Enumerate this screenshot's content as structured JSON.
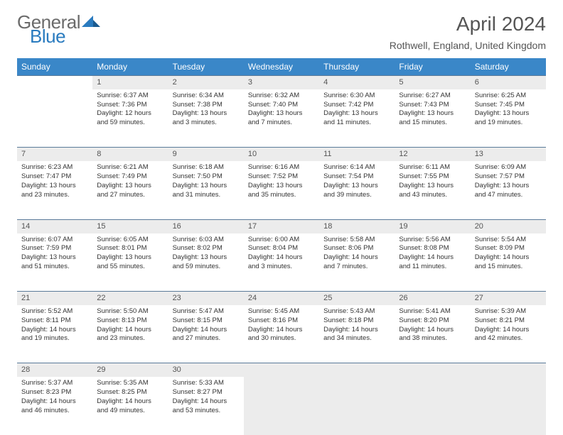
{
  "logo": {
    "text1": "General",
    "text2": "Blue",
    "tri_color": "#2a7bbf"
  },
  "title": "April 2024",
  "location": "Rothwell, England, United Kingdom",
  "header_bg": "#3a87c8",
  "daynum_bg": "#ececec",
  "border_color": "#5a7a99",
  "text_color": "#333333",
  "font_size_body": 9.5,
  "font_size_daynum": 11,
  "font_size_header": 12,
  "days": [
    "Sunday",
    "Monday",
    "Tuesday",
    "Wednesday",
    "Thursday",
    "Friday",
    "Saturday"
  ],
  "weeks": [
    {
      "nums": [
        "",
        "1",
        "2",
        "3",
        "4",
        "5",
        "6"
      ],
      "cells": [
        null,
        {
          "sr": "Sunrise: 6:37 AM",
          "ss": "Sunset: 7:36 PM",
          "d1": "Daylight: 12 hours",
          "d2": "and 59 minutes."
        },
        {
          "sr": "Sunrise: 6:34 AM",
          "ss": "Sunset: 7:38 PM",
          "d1": "Daylight: 13 hours",
          "d2": "and 3 minutes."
        },
        {
          "sr": "Sunrise: 6:32 AM",
          "ss": "Sunset: 7:40 PM",
          "d1": "Daylight: 13 hours",
          "d2": "and 7 minutes."
        },
        {
          "sr": "Sunrise: 6:30 AM",
          "ss": "Sunset: 7:42 PM",
          "d1": "Daylight: 13 hours",
          "d2": "and 11 minutes."
        },
        {
          "sr": "Sunrise: 6:27 AM",
          "ss": "Sunset: 7:43 PM",
          "d1": "Daylight: 13 hours",
          "d2": "and 15 minutes."
        },
        {
          "sr": "Sunrise: 6:25 AM",
          "ss": "Sunset: 7:45 PM",
          "d1": "Daylight: 13 hours",
          "d2": "and 19 minutes."
        }
      ]
    },
    {
      "nums": [
        "7",
        "8",
        "9",
        "10",
        "11",
        "12",
        "13"
      ],
      "cells": [
        {
          "sr": "Sunrise: 6:23 AM",
          "ss": "Sunset: 7:47 PM",
          "d1": "Daylight: 13 hours",
          "d2": "and 23 minutes."
        },
        {
          "sr": "Sunrise: 6:21 AM",
          "ss": "Sunset: 7:49 PM",
          "d1": "Daylight: 13 hours",
          "d2": "and 27 minutes."
        },
        {
          "sr": "Sunrise: 6:18 AM",
          "ss": "Sunset: 7:50 PM",
          "d1": "Daylight: 13 hours",
          "d2": "and 31 minutes."
        },
        {
          "sr": "Sunrise: 6:16 AM",
          "ss": "Sunset: 7:52 PM",
          "d1": "Daylight: 13 hours",
          "d2": "and 35 minutes."
        },
        {
          "sr": "Sunrise: 6:14 AM",
          "ss": "Sunset: 7:54 PM",
          "d1": "Daylight: 13 hours",
          "d2": "and 39 minutes."
        },
        {
          "sr": "Sunrise: 6:11 AM",
          "ss": "Sunset: 7:55 PM",
          "d1": "Daylight: 13 hours",
          "d2": "and 43 minutes."
        },
        {
          "sr": "Sunrise: 6:09 AM",
          "ss": "Sunset: 7:57 PM",
          "d1": "Daylight: 13 hours",
          "d2": "and 47 minutes."
        }
      ]
    },
    {
      "nums": [
        "14",
        "15",
        "16",
        "17",
        "18",
        "19",
        "20"
      ],
      "cells": [
        {
          "sr": "Sunrise: 6:07 AM",
          "ss": "Sunset: 7:59 PM",
          "d1": "Daylight: 13 hours",
          "d2": "and 51 minutes."
        },
        {
          "sr": "Sunrise: 6:05 AM",
          "ss": "Sunset: 8:01 PM",
          "d1": "Daylight: 13 hours",
          "d2": "and 55 minutes."
        },
        {
          "sr": "Sunrise: 6:03 AM",
          "ss": "Sunset: 8:02 PM",
          "d1": "Daylight: 13 hours",
          "d2": "and 59 minutes."
        },
        {
          "sr": "Sunrise: 6:00 AM",
          "ss": "Sunset: 8:04 PM",
          "d1": "Daylight: 14 hours",
          "d2": "and 3 minutes."
        },
        {
          "sr": "Sunrise: 5:58 AM",
          "ss": "Sunset: 8:06 PM",
          "d1": "Daylight: 14 hours",
          "d2": "and 7 minutes."
        },
        {
          "sr": "Sunrise: 5:56 AM",
          "ss": "Sunset: 8:08 PM",
          "d1": "Daylight: 14 hours",
          "d2": "and 11 minutes."
        },
        {
          "sr": "Sunrise: 5:54 AM",
          "ss": "Sunset: 8:09 PM",
          "d1": "Daylight: 14 hours",
          "d2": "and 15 minutes."
        }
      ]
    },
    {
      "nums": [
        "21",
        "22",
        "23",
        "24",
        "25",
        "26",
        "27"
      ],
      "cells": [
        {
          "sr": "Sunrise: 5:52 AM",
          "ss": "Sunset: 8:11 PM",
          "d1": "Daylight: 14 hours",
          "d2": "and 19 minutes."
        },
        {
          "sr": "Sunrise: 5:50 AM",
          "ss": "Sunset: 8:13 PM",
          "d1": "Daylight: 14 hours",
          "d2": "and 23 minutes."
        },
        {
          "sr": "Sunrise: 5:47 AM",
          "ss": "Sunset: 8:15 PM",
          "d1": "Daylight: 14 hours",
          "d2": "and 27 minutes."
        },
        {
          "sr": "Sunrise: 5:45 AM",
          "ss": "Sunset: 8:16 PM",
          "d1": "Daylight: 14 hours",
          "d2": "and 30 minutes."
        },
        {
          "sr": "Sunrise: 5:43 AM",
          "ss": "Sunset: 8:18 PM",
          "d1": "Daylight: 14 hours",
          "d2": "and 34 minutes."
        },
        {
          "sr": "Sunrise: 5:41 AM",
          "ss": "Sunset: 8:20 PM",
          "d1": "Daylight: 14 hours",
          "d2": "and 38 minutes."
        },
        {
          "sr": "Sunrise: 5:39 AM",
          "ss": "Sunset: 8:21 PM",
          "d1": "Daylight: 14 hours",
          "d2": "and 42 minutes."
        }
      ]
    },
    {
      "nums": [
        "28",
        "29",
        "30",
        "",
        "",
        "",
        ""
      ],
      "cells": [
        {
          "sr": "Sunrise: 5:37 AM",
          "ss": "Sunset: 8:23 PM",
          "d1": "Daylight: 14 hours",
          "d2": "and 46 minutes."
        },
        {
          "sr": "Sunrise: 5:35 AM",
          "ss": "Sunset: 8:25 PM",
          "d1": "Daylight: 14 hours",
          "d2": "and 49 minutes."
        },
        {
          "sr": "Sunrise: 5:33 AM",
          "ss": "Sunset: 8:27 PM",
          "d1": "Daylight: 14 hours",
          "d2": "and 53 minutes."
        },
        "blank",
        "blank",
        "blank",
        "blank"
      ]
    }
  ]
}
